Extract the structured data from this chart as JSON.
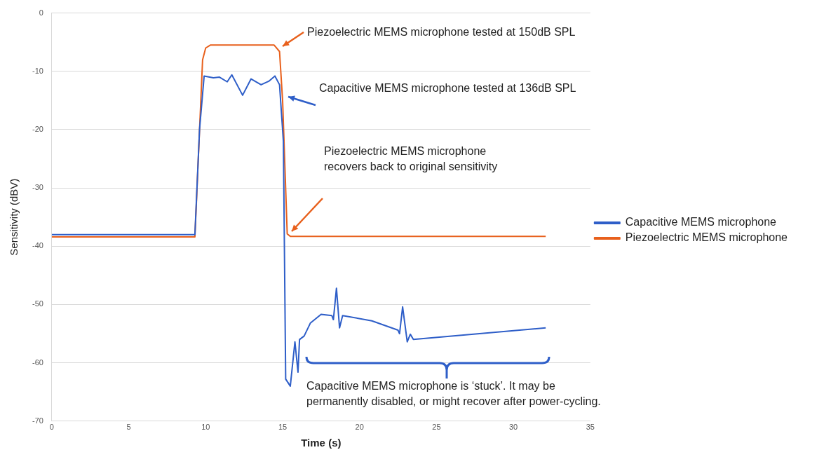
{
  "chart_data": {
    "type": "line",
    "xlabel": "Time (s)",
    "ylabel": "Sensitivity (dBV)",
    "xlim": [
      0,
      35
    ],
    "xticks": [
      0,
      5,
      10,
      15,
      20,
      25,
      30,
      35
    ],
    "ylim": [
      -70,
      0
    ],
    "yticks": [
      -70,
      -60,
      -50,
      -40,
      -30,
      -20,
      -10,
      0
    ],
    "grid": "y",
    "legend": "right",
    "marker": "none",
    "line_style": "solid",
    "series": [
      {
        "name": "Capacitive MEMS microphone",
        "color": "#2e5ec8",
        "x": [
          0,
          9.3,
          9.6,
          9.9,
          10.5,
          10.9,
          11.4,
          11.7,
          12.4,
          12.95,
          13.6,
          14.1,
          14.5,
          14.8,
          15.05,
          15.2,
          15.5,
          15.8,
          16.0,
          16.1,
          16.4,
          16.8,
          17.5,
          18.2,
          18.3,
          18.5,
          18.7,
          18.9,
          20.8,
          22.5,
          22.6,
          22.8,
          23.1,
          23.3,
          23.5,
          32.1
        ],
        "values": [
          -38,
          -38,
          -20,
          -10.8,
          -11.1,
          -11,
          -11.8,
          -10.6,
          -14.1,
          -11.3,
          -12.3,
          -11.7,
          -10.8,
          -12.3,
          -22,
          -62.8,
          -64,
          -56.4,
          -61.6,
          -56,
          -55.4,
          -53.2,
          -51.7,
          -51.9,
          -52.6,
          -47.2,
          -54,
          -51.9,
          -52.8,
          -54.4,
          -55,
          -50.4,
          -56.4,
          -55.1,
          -56,
          -54
        ]
      },
      {
        "name": "Piezoelectric MEMS microphone",
        "color": "#e8601c",
        "x": [
          0,
          9.3,
          9.8,
          10.0,
          10.3,
          14.45,
          14.8,
          15.0,
          15.3,
          15.5,
          32.1
        ],
        "values": [
          -38.4,
          -38.4,
          -8,
          -6,
          -5.5,
          -5.5,
          -6.6,
          -15,
          -37.9,
          -38.3,
          -38.3
        ]
      }
    ],
    "annotations": [
      "Piezoelectric MEMS microphone tested at 150dB SPL",
      "Capacitive MEMS microphone tested at 136dB SPL",
      "Piezoelectric MEMS microphone\nrecovers back to original sensitivity",
      "Capacitive MEMS microphone is ‘stuck’. It may be\npermanently disabled, or might recover after power-cycling."
    ]
  }
}
